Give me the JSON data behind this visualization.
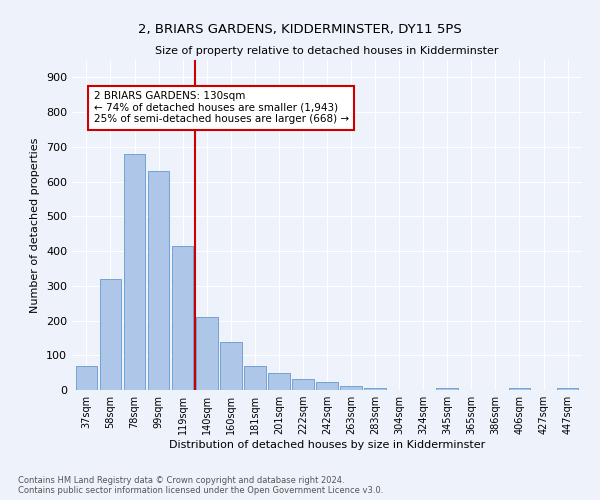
{
  "title": "2, BRIARS GARDENS, KIDDERMINSTER, DY11 5PS",
  "subtitle": "Size of property relative to detached houses in Kidderminster",
  "xlabel": "Distribution of detached houses by size in Kidderminster",
  "ylabel": "Number of detached properties",
  "categories": [
    "37sqm",
    "58sqm",
    "78sqm",
    "99sqm",
    "119sqm",
    "140sqm",
    "160sqm",
    "181sqm",
    "201sqm",
    "222sqm",
    "242sqm",
    "263sqm",
    "283sqm",
    "304sqm",
    "324sqm",
    "345sqm",
    "365sqm",
    "386sqm",
    "406sqm",
    "427sqm",
    "447sqm"
  ],
  "values": [
    70,
    320,
    680,
    630,
    415,
    210,
    137,
    70,
    48,
    33,
    22,
    12,
    6,
    0,
    0,
    5,
    0,
    0,
    5,
    0,
    7
  ],
  "bar_color": "#aec6e8",
  "bar_edge_color": "#6699cc",
  "vline_color": "#cc0000",
  "annotation_text": "2 BRIARS GARDENS: 130sqm\n← 74% of detached houses are smaller (1,943)\n25% of semi-detached houses are larger (668) →",
  "annotation_box_color": "#ffffff",
  "annotation_box_edge": "#cc0000",
  "footer_line1": "Contains HM Land Registry data © Crown copyright and database right 2024.",
  "footer_line2": "Contains public sector information licensed under the Open Government Licence v3.0.",
  "background_color": "#eef2fa",
  "plot_background": "#eef2fa",
  "ylim": [
    0,
    950
  ],
  "yticks": [
    0,
    100,
    200,
    300,
    400,
    500,
    600,
    700,
    800,
    900
  ]
}
